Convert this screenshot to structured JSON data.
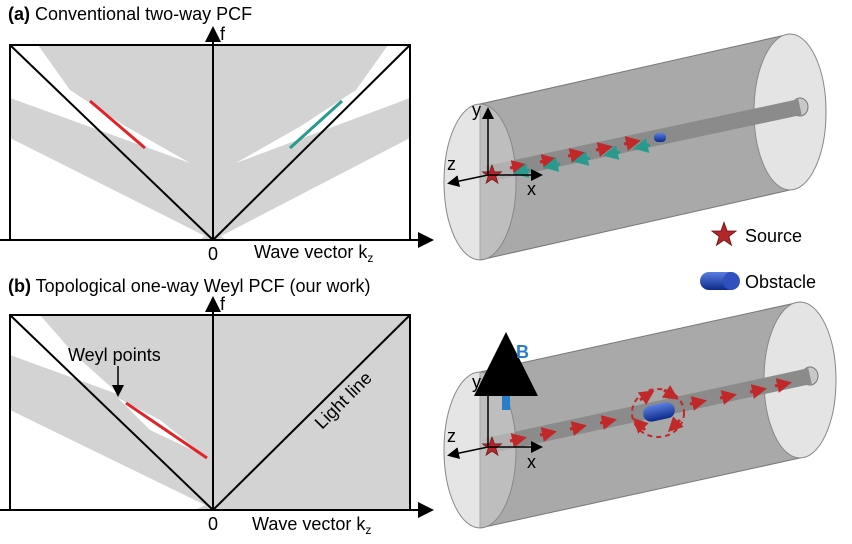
{
  "panel_a": {
    "label": "(a)",
    "title": "Conventional two-way PCF",
    "plot": {
      "y_axis": "f",
      "origin": "0",
      "x_axis": "Wave vector k",
      "x_axis_sub": "z"
    },
    "axes3d": {
      "x": "x",
      "y": "y",
      "z": "z"
    }
  },
  "panel_b": {
    "label": "(b)",
    "title": "Topological one-way Weyl PCF (our work)",
    "plot": {
      "y_axis": "f",
      "origin": "0",
      "x_axis": "Wave vector k",
      "x_axis_sub": "z"
    },
    "annotations": {
      "weyl_points": "Weyl points",
      "light_line": "Light line"
    },
    "axes3d": {
      "x": "x",
      "y": "y",
      "z": "z",
      "field": "B"
    }
  },
  "legend": {
    "source": "Source",
    "obstacle": "Obstacle"
  }
}
